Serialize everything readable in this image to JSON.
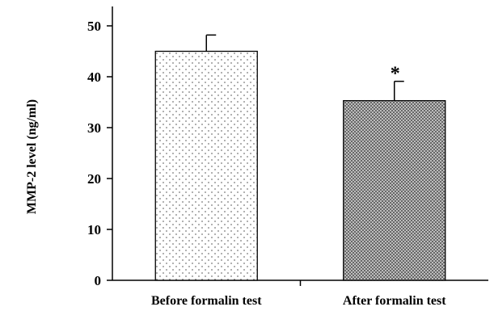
{
  "chart_data": {
    "type": "bar",
    "title": "",
    "xlabel": "",
    "ylabel": "MMP-2 level (ng/ml)",
    "categories": [
      "Before formalin test",
      "After formalin test"
    ],
    "values": [
      45.0,
      35.3
    ],
    "error_bars": [
      3.2,
      3.8
    ],
    "annotations": [
      {
        "category_index": 1,
        "text": "*"
      }
    ],
    "ylim": [
      0,
      50
    ],
    "yticks": [
      0,
      10,
      20,
      30,
      40,
      50
    ],
    "grid": false,
    "legend": "none",
    "bar_patterns": [
      "sparse-dots",
      "dense-dots"
    ],
    "colors": {
      "axis": "#000000",
      "bar_fill": "#ffffff",
      "bar_stroke": "#000000",
      "sparse_dot": "#7a7a7a",
      "dense_bg": "#bdbdbd",
      "dense_dot": "#2a2a2a"
    }
  }
}
